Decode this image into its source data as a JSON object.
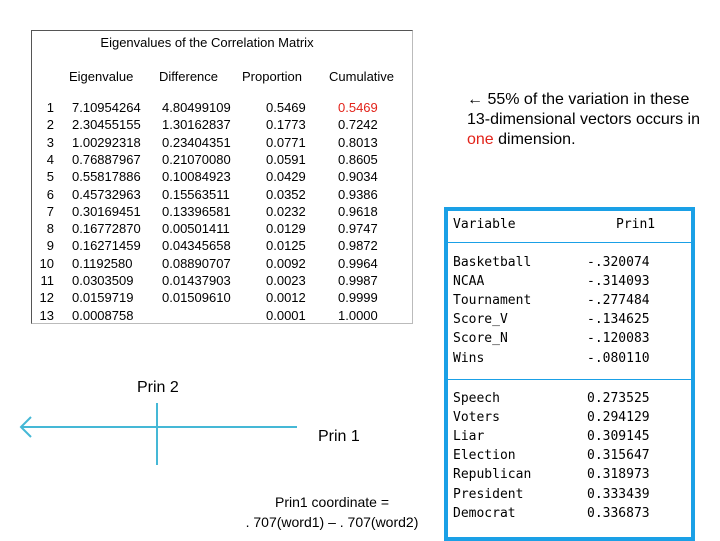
{
  "eigen_table": {
    "title": "Eigenvalues of the Correlation Matrix",
    "headers": {
      "eigenvalue": "Eigenvalue",
      "difference": "Difference",
      "proportion": "Proportion",
      "cumulative": "Cumulative"
    },
    "rows": [
      {
        "idx": "1",
        "eigenvalue": "7.10954264",
        "difference": "4.80499109",
        "proportion": "0.5469",
        "cumulative": "0.5469"
      },
      {
        "idx": "2",
        "eigenvalue": "2.30455155",
        "difference": "1.30162837",
        "proportion": "0.1773",
        "cumulative": "0.7242"
      },
      {
        "idx": "3",
        "eigenvalue": "1.00292318",
        "difference": "0.23404351",
        "proportion": "0.0771",
        "cumulative": "0.8013"
      },
      {
        "idx": "4",
        "eigenvalue": "0.76887967",
        "difference": "0.21070080",
        "proportion": "0.0591",
        "cumulative": "0.8605"
      },
      {
        "idx": "5",
        "eigenvalue": "0.55817886",
        "difference": "0.10084923",
        "proportion": "0.0429",
        "cumulative": "0.9034"
      },
      {
        "idx": "6",
        "eigenvalue": "0.45732963",
        "difference": "0.15563511",
        "proportion": "0.0352",
        "cumulative": "0.9386"
      },
      {
        "idx": "7",
        "eigenvalue": "0.30169451",
        "difference": "0.13396581",
        "proportion": "0.0232",
        "cumulative": "0.9618"
      },
      {
        "idx": "8",
        "eigenvalue": "0.16772870",
        "difference": "0.00501411",
        "proportion": "0.0129",
        "cumulative": "0.9747"
      },
      {
        "idx": "9",
        "eigenvalue": "0.16271459",
        "difference": "0.04345658",
        "proportion": "0.0125",
        "cumulative": "0.9872"
      },
      {
        "idx": "10",
        "eigenvalue": "0.1192580",
        "difference": "0.08890707",
        "proportion": "0.0092",
        "cumulative": "0.9964"
      },
      {
        "idx": "11",
        "eigenvalue": "0.0303509",
        "difference": "0.01437903",
        "proportion": "0.0023",
        "cumulative": "0.9987"
      },
      {
        "idx": "12",
        "eigenvalue": "0.0159719",
        "difference": "0.01509610",
        "proportion": "0.0012",
        "cumulative": "0.9999"
      },
      {
        "idx": "13",
        "eigenvalue": "0.0008758",
        "difference": "",
        "proportion": "0.0001",
        "cumulative": "1.0000"
      }
    ],
    "highlight_color": "#e2231a"
  },
  "annotation": {
    "arrow": "←",
    "pct": " 55%",
    "text_a": " of the variation in these 13-dimensional vectors occurs in ",
    "one": "one",
    "text_b": " dimension."
  },
  "loadings": {
    "header": {
      "label": "Variable",
      "value": "Prin1"
    },
    "group1": [
      {
        "label": "Basketball",
        "value": "-.320074"
      },
      {
        "label": "NCAA",
        "value": "-.314093"
      },
      {
        "label": "Tournament",
        "value": "-.277484"
      },
      {
        "label": "Score_V",
        "value": "-.134625"
      },
      {
        "label": "Score_N",
        "value": "-.120083"
      },
      {
        "label": "Wins",
        "value": "-.080110"
      }
    ],
    "group2": [
      {
        "label": "Speech",
        "value": "0.273525"
      },
      {
        "label": "Voters",
        "value": "0.294129"
      },
      {
        "label": "Liar",
        "value": "0.309145"
      },
      {
        "label": "Election",
        "value": "0.315647"
      },
      {
        "label": "Republican",
        "value": "0.318973"
      },
      {
        "label": "President",
        "value": "0.333439"
      },
      {
        "label": "Democrat",
        "value": "0.336873"
      }
    ],
    "border_color": "#1aa0e6"
  },
  "diagram": {
    "prin2_label": "Prin 2",
    "prin1_label": "Prin 1",
    "coord_line1": "Prin1 coordinate =",
    "coord_line2": ". 707(word1) – . 707(word2)"
  }
}
